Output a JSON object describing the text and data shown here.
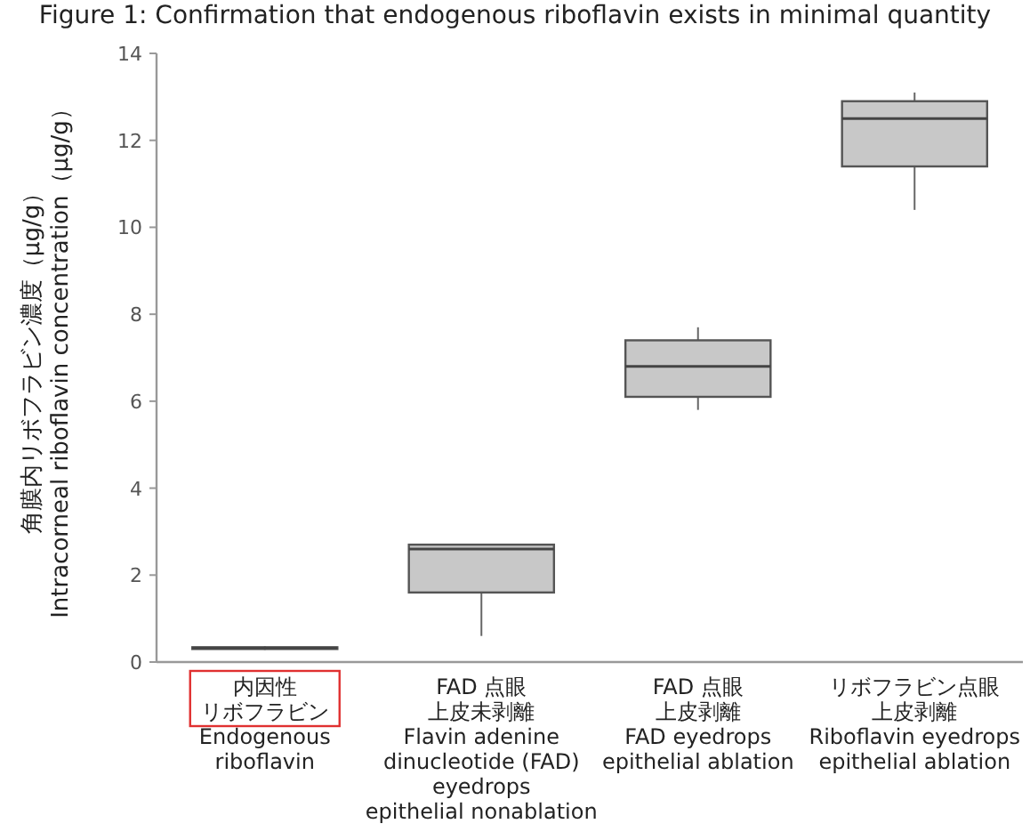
{
  "chart_data": {
    "type": "box",
    "title": "Figure 1: Confirmation that endogenous riboflavin exists in minimal quantity",
    "ylabel": "角膜内リボフラビン濃度（μg/g）\nIntracorneal riboflavin concentration（μg/g）",
    "categories": [
      "内因性リボフラビン\nEndogenous\nriboflavin",
      "FAD 点眼上皮未剥離\nFlavin adenine\ndinucleotide (FAD)\neyedrops\nepithelial nonablation",
      "FAD 点眼上皮剥離\nFAD eyedrops\nepithelial ablation",
      "リボフラビン点眼上皮剥離\nRiboflavin eyedrops\nepithelial ablation"
    ],
    "boxes": [
      {
        "low": 0.28,
        "q1": 0.3,
        "median": 0.32,
        "q3": 0.34,
        "high": 0.36
      },
      {
        "low": 0.6,
        "q1": 1.6,
        "median": 2.6,
        "q3": 2.7,
        "high": 2.7
      },
      {
        "low": 5.8,
        "q1": 6.1,
        "median": 6.8,
        "q3": 7.4,
        "high": 7.7
      },
      {
        "low": 10.4,
        "q1": 11.4,
        "median": 12.5,
        "q3": 12.9,
        "high": 13.1
      }
    ],
    "color": "#c8c8c8",
    "ylim": [
      0,
      14
    ],
    "yticks": [
      0,
      2,
      4,
      6,
      8,
      10,
      12,
      14
    ],
    "grid": false
  }
}
